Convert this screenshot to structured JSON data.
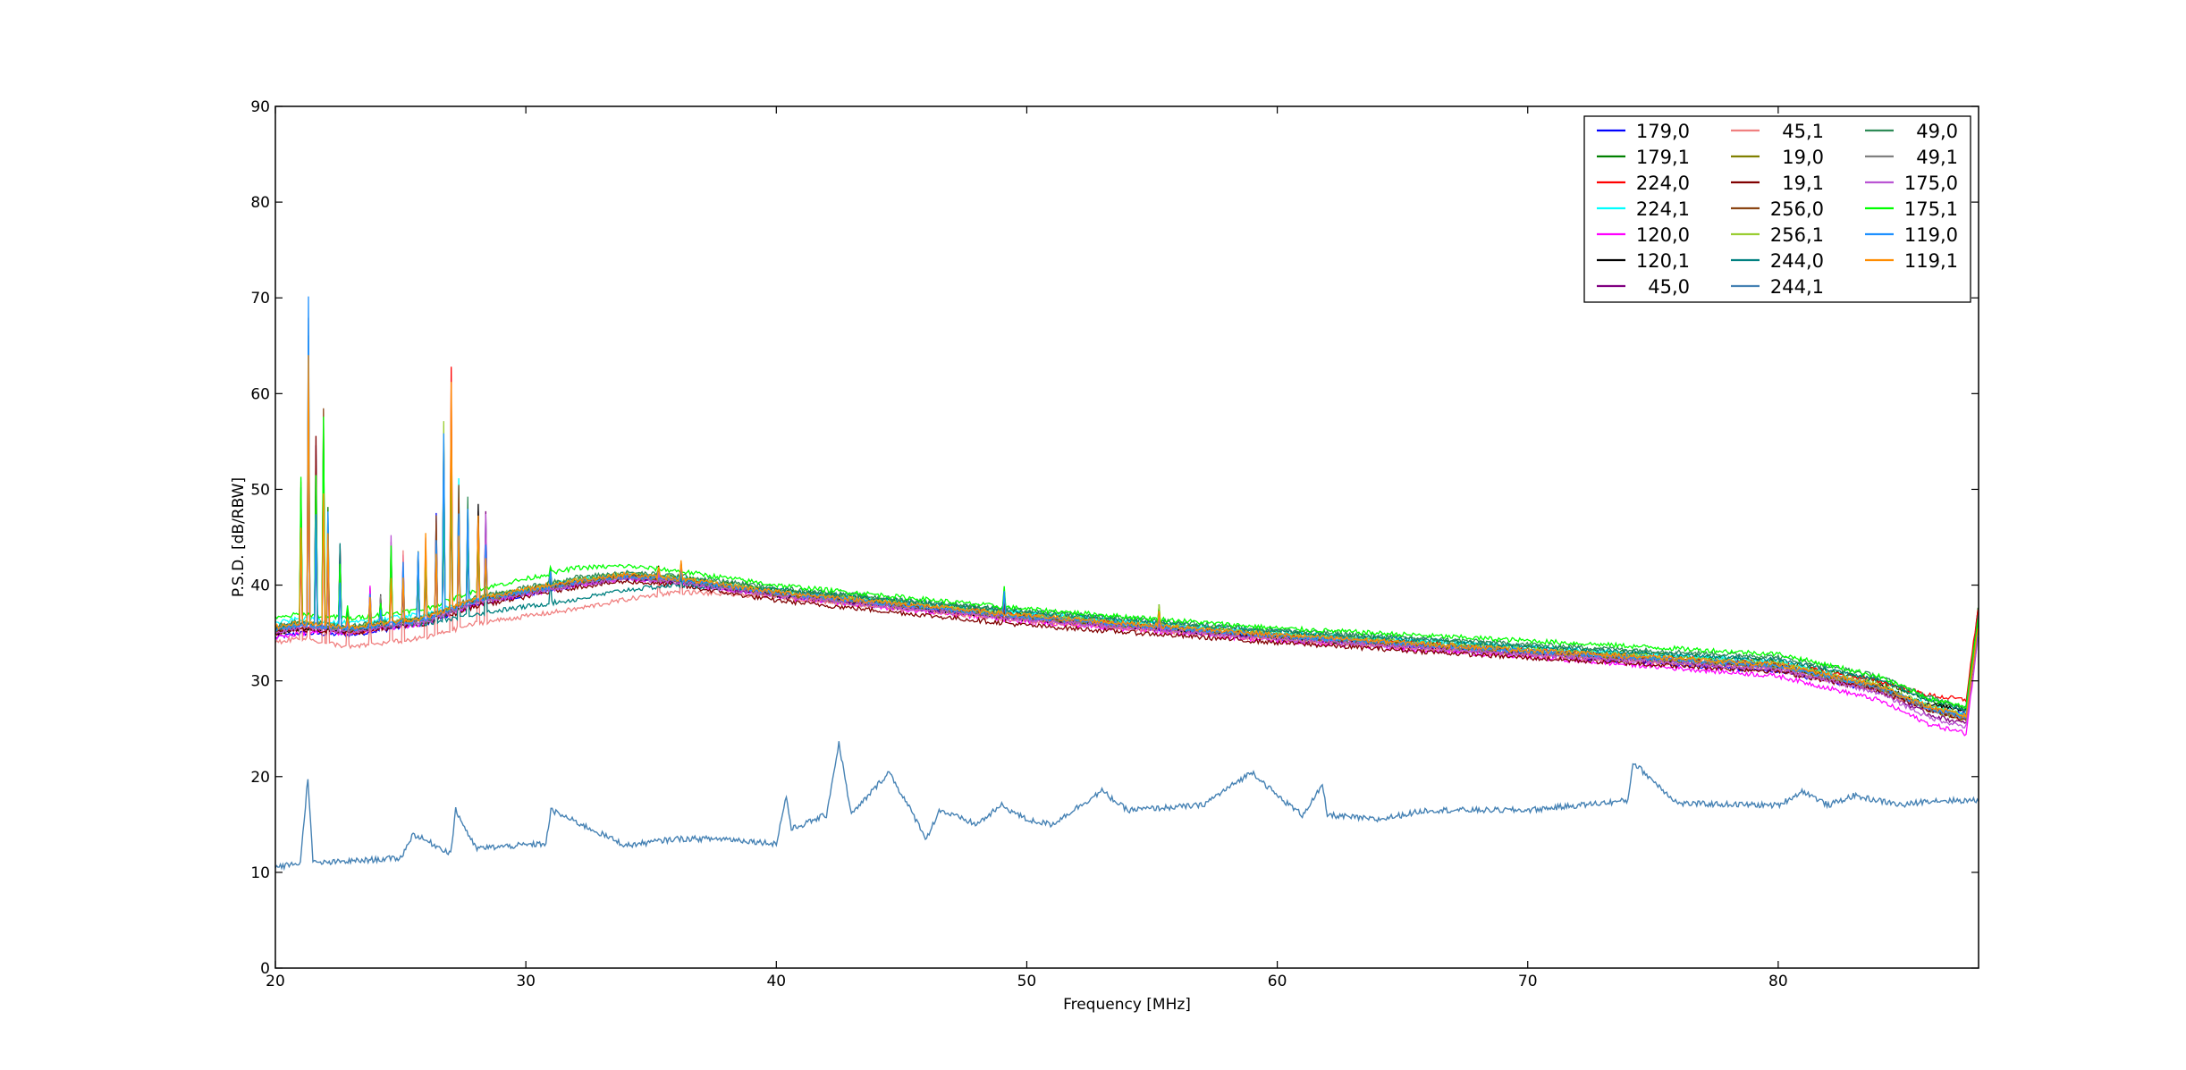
{
  "chart_data": {
    "type": "line",
    "title": "",
    "xlabel": "Frequency [MHz]",
    "ylabel": "P.S.D. [dB/RBW]",
    "xlim": [
      20,
      88
    ],
    "ylim": [
      0,
      90
    ],
    "xticks": [
      20,
      30,
      40,
      50,
      60,
      70,
      80
    ],
    "yticks": [
      0,
      10,
      20,
      30,
      40,
      50,
      60,
      70,
      80,
      90
    ],
    "grid": false,
    "legend_position": "top-right",
    "legend_columns": 3,
    "series": [
      {
        "name": "179,0",
        "color": "#0000ff",
        "x": [
          20,
          21,
          23,
          26,
          28,
          32,
          34,
          36,
          40,
          50,
          60,
          70,
          80,
          84,
          86,
          87.5,
          88
        ],
        "y": [
          34.5,
          35,
          34.8,
          36,
          38,
          40,
          40.8,
          40.5,
          39,
          36.5,
          34.5,
          32.8,
          31,
          29,
          27,
          26.5,
          38
        ]
      },
      {
        "name": "179,1",
        "color": "#008000",
        "x": [
          20,
          21,
          23,
          26,
          28,
          32,
          34,
          36,
          40,
          50,
          60,
          70,
          80,
          84,
          86,
          87.5,
          88
        ],
        "y": [
          35.5,
          36,
          35.5,
          36.5,
          38.5,
          40.5,
          41,
          40.8,
          39.5,
          37,
          35,
          33.5,
          32,
          30,
          28,
          27,
          38
        ]
      },
      {
        "name": "224,0",
        "color": "#ff0000",
        "x": [
          20,
          21,
          23,
          26,
          28,
          32,
          34,
          36,
          40,
          50,
          60,
          70,
          80,
          84,
          86,
          87.5,
          88
        ],
        "y": [
          35,
          35.5,
          35,
          36.5,
          38.5,
          40.3,
          41,
          40.6,
          39.2,
          36.8,
          34.8,
          33.2,
          31.8,
          30,
          28.5,
          28,
          38
        ]
      },
      {
        "name": "224,1",
        "color": "#00ffff",
        "x": [
          20,
          21,
          23,
          26,
          28,
          32,
          34,
          36,
          40,
          50,
          60,
          70,
          80,
          84,
          86,
          87.5,
          88
        ],
        "y": [
          36,
          36.5,
          36,
          37,
          38.5,
          40.5,
          41,
          40.7,
          39.3,
          37,
          35,
          33.5,
          32,
          29.5,
          27.5,
          26.5,
          37
        ]
      },
      {
        "name": "120,0",
        "color": "#ff00ff",
        "x": [
          20,
          21,
          23,
          26,
          28,
          32,
          34,
          36,
          40,
          50,
          60,
          70,
          80,
          84,
          86,
          87.5,
          88
        ],
        "y": [
          34.5,
          35,
          35,
          36,
          38,
          40,
          40.7,
          40.3,
          38.8,
          36.2,
          34.2,
          32.5,
          30.5,
          28,
          25.5,
          24.5,
          35
        ]
      },
      {
        "name": "120,1",
        "color": "#000000",
        "x": [
          20,
          21,
          23,
          26,
          28,
          32,
          34,
          36,
          40,
          50,
          60,
          70,
          80,
          84,
          86,
          87.5,
          88
        ],
        "y": [
          35,
          35.5,
          35.2,
          36.3,
          38.3,
          40.2,
          40.9,
          40.5,
          39,
          36.5,
          34.5,
          33,
          31.5,
          29.5,
          27.5,
          27,
          37
        ]
      },
      {
        "name": "45,0",
        "color": "#800080",
        "x": [
          20,
          21,
          23,
          26,
          28,
          32,
          34,
          36,
          40,
          50,
          60,
          70,
          80,
          84,
          86,
          87.5,
          88
        ],
        "y": [
          35.2,
          35.6,
          35.2,
          36.2,
          38.2,
          40.1,
          40.8,
          40.4,
          38.9,
          36.4,
          34.4,
          32.8,
          31.2,
          29,
          26.5,
          25.5,
          36
        ]
      },
      {
        "name": "45,1",
        "color": "#f08080",
        "x": [
          20,
          21,
          23,
          26,
          28,
          32,
          34,
          36,
          40,
          50,
          60,
          70,
          80,
          84,
          86,
          87.5,
          88
        ],
        "y": [
          34,
          34.5,
          33.5,
          34.5,
          36,
          37.5,
          38.5,
          39.3,
          38.8,
          36.3,
          34.3,
          32.7,
          31.2,
          29,
          27,
          26,
          36
        ]
      },
      {
        "name": "19,0",
        "color": "#808000",
        "x": [
          20,
          21,
          23,
          26,
          28,
          32,
          34,
          36,
          40,
          50,
          60,
          70,
          80,
          84,
          86,
          87.5,
          88
        ],
        "y": [
          35.3,
          35.8,
          35.3,
          36.3,
          38.3,
          40.2,
          40.9,
          40.5,
          39.1,
          36.6,
          34.6,
          33,
          31.5,
          29.3,
          27,
          26,
          36
        ]
      },
      {
        "name": "19,1",
        "color": "#800000",
        "x": [
          20,
          21,
          23,
          26,
          28,
          32,
          34,
          36,
          40,
          50,
          60,
          70,
          80,
          84,
          86,
          87.5,
          88
        ],
        "y": [
          35,
          35.4,
          35,
          36,
          37.8,
          39.8,
          40.4,
          40,
          38.4,
          35.8,
          34,
          32.4,
          31,
          29,
          27,
          26,
          36
        ]
      },
      {
        "name": "256,0",
        "color": "#8b4513",
        "x": [
          20,
          21,
          23,
          26,
          28,
          32,
          34,
          36,
          40,
          50,
          60,
          70,
          80,
          84,
          86,
          87.5,
          88
        ],
        "y": [
          35.4,
          35.9,
          35.4,
          36.4,
          38.4,
          40.3,
          41,
          40.6,
          39.2,
          36.7,
          34.7,
          33.1,
          31.6,
          29.4,
          27.2,
          26.2,
          36
        ]
      },
      {
        "name": "256,1",
        "color": "#9acd32",
        "x": [
          20,
          21,
          23,
          26,
          28,
          32,
          34,
          36,
          40,
          50,
          60,
          70,
          80,
          84,
          86,
          87.5,
          88
        ],
        "y": [
          35.6,
          36.1,
          35.6,
          36.6,
          38.6,
          40.6,
          41.2,
          40.8,
          39.4,
          36.9,
          34.9,
          33.3,
          31.8,
          29.6,
          27.4,
          26.4,
          36
        ]
      },
      {
        "name": "244,0",
        "color": "#008080",
        "x": [
          20,
          21,
          23,
          26,
          28,
          32,
          34,
          36,
          40,
          50,
          60,
          70,
          80,
          84,
          86,
          87.5,
          88
        ],
        "y": [
          35.5,
          36,
          35.5,
          36,
          37,
          38.5,
          39.5,
          40,
          39.5,
          37.2,
          35.2,
          33.6,
          32.2,
          30.2,
          28,
          27,
          37
        ]
      },
      {
        "name": "244,1",
        "color": "#4682b4",
        "x": [
          20,
          21,
          21.3,
          21.5,
          22,
          25,
          25.5,
          27,
          27.2,
          28,
          30.8,
          31,
          34,
          36,
          38,
          40,
          40.4,
          40.6,
          42,
          42.5,
          43,
          44.5,
          46,
          46.5,
          48,
          49,
          50,
          51,
          53,
          54,
          57,
          59,
          60,
          61,
          61.8,
          62,
          64,
          66,
          70,
          74,
          74.2,
          76,
          80,
          81,
          82,
          83,
          85,
          86,
          88
        ],
        "y": [
          10.5,
          11,
          20,
          11,
          11,
          11.5,
          14,
          12,
          16.5,
          12.5,
          13,
          16.5,
          12.8,
          13.5,
          13.5,
          13,
          18,
          14.5,
          16,
          23.5,
          16,
          20.5,
          13.5,
          16.5,
          15,
          17,
          15.5,
          15,
          18.5,
          16.5,
          17,
          20.5,
          18,
          16,
          19,
          16,
          15.5,
          16.5,
          16.5,
          17.5,
          21.5,
          17.2,
          17,
          18.5,
          17,
          18,
          17,
          17.5,
          17.5
        ]
      },
      {
        "name": "49,0",
        "color": "#2e8b57",
        "x": [
          20,
          21,
          23,
          26,
          28,
          32,
          34,
          36,
          40,
          50,
          60,
          70,
          80,
          84,
          86,
          87.5,
          88
        ],
        "y": [
          35.7,
          36.2,
          35.7,
          36.7,
          38.7,
          40.8,
          41.3,
          41,
          39.7,
          37.3,
          35.3,
          33.8,
          32.5,
          30.5,
          28.3,
          27.3,
          37
        ]
      },
      {
        "name": "49,1",
        "color": "#808080",
        "x": [
          20,
          21,
          23,
          26,
          28,
          32,
          34,
          36,
          40,
          50,
          60,
          70,
          80,
          84,
          86,
          87.5,
          88
        ],
        "y": [
          35.3,
          35.8,
          35.3,
          36.3,
          38.3,
          40.2,
          40.9,
          40.5,
          39.1,
          36.6,
          34.6,
          33,
          31.5,
          29.3,
          27.1,
          26.1,
          36
        ]
      },
      {
        "name": "175,0",
        "color": "#ba55d3",
        "x": [
          20,
          21,
          23,
          26,
          28,
          32,
          34,
          36,
          40,
          50,
          60,
          70,
          80,
          84,
          86,
          87.5,
          88
        ],
        "y": [
          35.1,
          35.6,
          35.1,
          36.1,
          38.1,
          40,
          40.7,
          40.3,
          38.9,
          36.4,
          34.4,
          32.8,
          31.2,
          28.8,
          26.2,
          25.2,
          35
        ]
      },
      {
        "name": "175,1",
        "color": "#00ff00",
        "x": [
          20,
          21,
          23,
          26,
          28,
          32,
          34,
          36,
          40,
          50,
          60,
          70,
          80,
          84,
          86,
          87.5,
          88
        ],
        "y": [
          36.5,
          37,
          36.5,
          37.5,
          39.5,
          41.8,
          42,
          41.5,
          40,
          37.5,
          35.5,
          34.2,
          32.8,
          30.5,
          28.2,
          27.2,
          37
        ]
      },
      {
        "name": "119,0",
        "color": "#1e90ff",
        "x": [
          20,
          21,
          23,
          26,
          28,
          32,
          34,
          36,
          40,
          50,
          60,
          70,
          80,
          84,
          86,
          87.5,
          88
        ],
        "y": [
          35.4,
          35.9,
          35.4,
          36.4,
          38.4,
          40.3,
          41,
          40.6,
          39.2,
          36.7,
          34.7,
          33.1,
          31.6,
          29.4,
          27.2,
          26.2,
          36
        ]
      },
      {
        "name": "119,1",
        "color": "#ff8c00",
        "x": [
          20,
          21,
          23,
          26,
          28,
          32,
          34,
          36,
          40,
          50,
          60,
          70,
          80,
          84,
          86,
          87.5,
          88
        ],
        "y": [
          35.6,
          36.1,
          35.6,
          36.6,
          38.6,
          40.5,
          41.1,
          40.7,
          39.3,
          36.8,
          34.8,
          33.2,
          31.7,
          29.5,
          27.3,
          26.3,
          36
        ]
      }
    ]
  }
}
